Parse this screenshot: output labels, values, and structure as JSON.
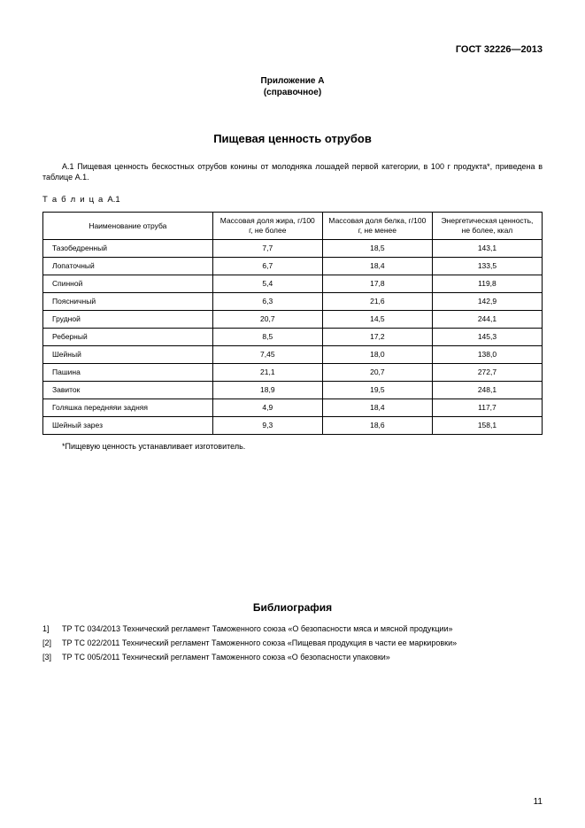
{
  "doc_code": "ГОСТ 32226—2013",
  "appendix_label": "Приложение А",
  "appendix_type": "(справочное)",
  "title": "Пищевая ценность отрубов",
  "intro_para": "А.1 Пищевая ценность бескостных отрубов конины от молодняка лошадей первой категории, в 100 г продукта*, приведена в таблице А.1.",
  "table_caption_word": "Т а б л и ц а",
  "table_caption_num": "А.1",
  "columns": [
    "Наименование отруба",
    "Массовая доля жира, г/100 г, не более",
    "Массовая доля белка, г/100 г, не менее",
    "Энергетическая ценность, не более, ккал"
  ],
  "col_widths": [
    "34%",
    "22%",
    "22%",
    "22%"
  ],
  "rows": [
    {
      "name": "Тазобедренный",
      "fat": "7,7",
      "protein": "18,5",
      "energy": "143,1"
    },
    {
      "name": "Лопаточный",
      "fat": "6,7",
      "protein": "18,4",
      "energy": "133,5"
    },
    {
      "name": "Спинной",
      "fat": "5,4",
      "protein": "17,8",
      "energy": "119,8"
    },
    {
      "name": "Поясничный",
      "fat": "6,3",
      "protein": "21,6",
      "energy": "142,9"
    },
    {
      "name": "Грудной",
      "fat": "20,7",
      "protein": "14,5",
      "energy": "244,1"
    },
    {
      "name": "Реберный",
      "fat": "8,5",
      "protein": "17,2",
      "energy": "145,3"
    },
    {
      "name": "Шейный",
      "fat": "7,45",
      "protein": "18,0",
      "energy": "138,0"
    },
    {
      "name": "Пашина",
      "fat": "21,1",
      "protein": "20,7",
      "energy": "272,7"
    },
    {
      "name": "Завиток",
      "fat": "18,9",
      "protein": "19,5",
      "energy": "248,1"
    },
    {
      "name": "Голяшка передняяи задняя",
      "fat": "4,9",
      "protein": "18,4",
      "energy": "117,7"
    },
    {
      "name": "Шейный зарез",
      "fat": "9,3",
      "protein": "18,6",
      "energy": "158,1"
    }
  ],
  "footnote": "*Пищевую ценность устанавливает изготовитель.",
  "biblio_title": "Библиография",
  "biblio": [
    {
      "idx": "1]",
      "text": "ТР ТС 034/2013 Технический регламент Таможенного союза «О безопасности мяса и мясной продукции»"
    },
    {
      "idx": "[2]",
      "text": "ТР ТС 022/2011 Технический регламент Таможенного союза «Пищевая продукция в части ее маркировки»"
    },
    {
      "idx": "[3]",
      "text": "ТР ТС 005/2011 Технический регламент Таможенного союза «О безопасности упаковки»"
    }
  ],
  "page_number": "11"
}
